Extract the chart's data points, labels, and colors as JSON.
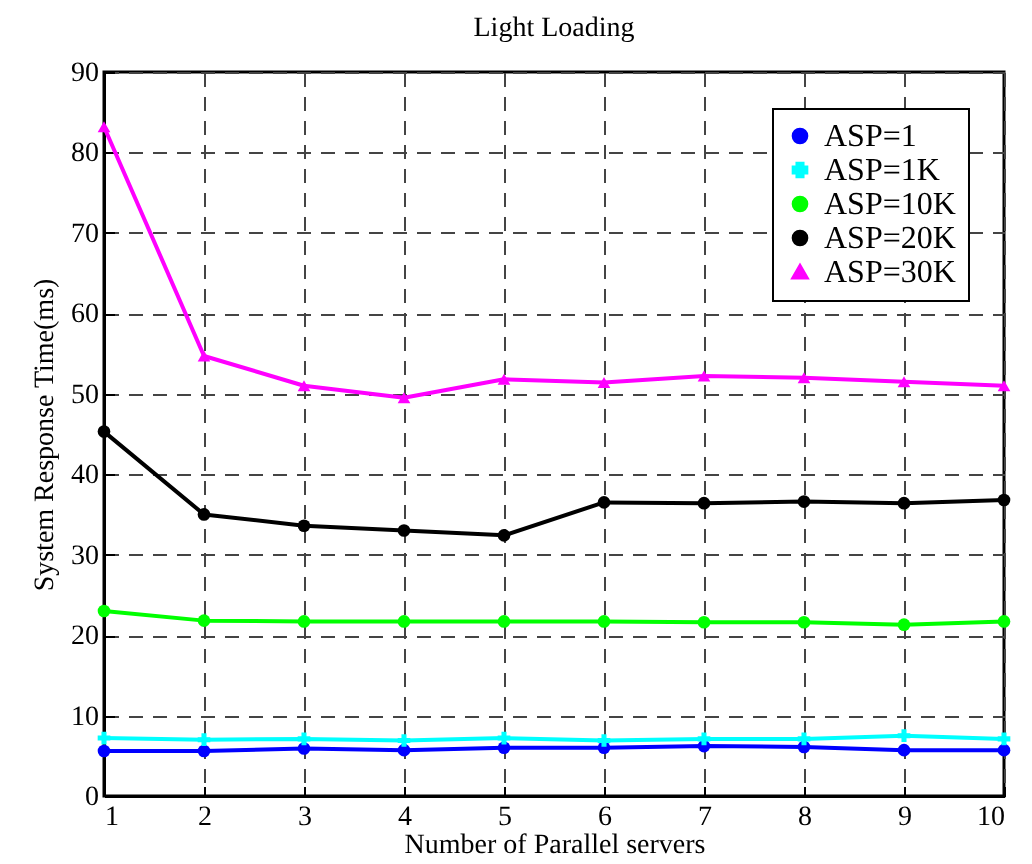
{
  "chart_data": {
    "type": "line",
    "title": "Light Loading",
    "xlabel": "Number of Parallel servers",
    "ylabel": "System Response Time(ms)",
    "x": [
      1,
      2,
      3,
      4,
      5,
      6,
      7,
      8,
      9,
      10
    ],
    "series": [
      {
        "name": "ASP=1",
        "color": "#0000ff",
        "marker": "circle",
        "values": [
          5.6,
          5.6,
          5.9,
          5.7,
          6.0,
          6.0,
          6.2,
          6.1,
          5.7,
          5.7
        ]
      },
      {
        "name": "ASP=1K",
        "color": "#00ffff",
        "marker": "cross",
        "values": [
          7.2,
          7.0,
          7.1,
          6.9,
          7.2,
          6.9,
          7.1,
          7.1,
          7.5,
          7.1
        ]
      },
      {
        "name": "ASP=10K",
        "color": "#00ff00",
        "marker": "circle",
        "values": [
          23.0,
          21.8,
          21.7,
          21.7,
          21.7,
          21.7,
          21.6,
          21.6,
          21.3,
          21.7
        ]
      },
      {
        "name": "ASP=20K",
        "color": "#000000",
        "marker": "circle",
        "values": [
          45.3,
          35.0,
          33.6,
          33.0,
          32.4,
          36.5,
          36.4,
          36.6,
          36.4,
          36.8
        ]
      },
      {
        "name": "ASP=30K",
        "color": "#ff00ff",
        "marker": "triangle",
        "values": [
          83.2,
          54.7,
          51.0,
          49.5,
          51.8,
          51.4,
          52.2,
          52.0,
          51.5,
          51.0
        ]
      }
    ],
    "xlim": [
      1,
      10
    ],
    "xticks": [
      1,
      2,
      3,
      4,
      5,
      6,
      7,
      8,
      9,
      10
    ],
    "ylim": [
      0,
      90
    ],
    "yticks": [
      0,
      10,
      20,
      30,
      40,
      50,
      60,
      70,
      80,
      90
    ],
    "grid": true,
    "legend": "top right",
    "line_style": "solid"
  }
}
